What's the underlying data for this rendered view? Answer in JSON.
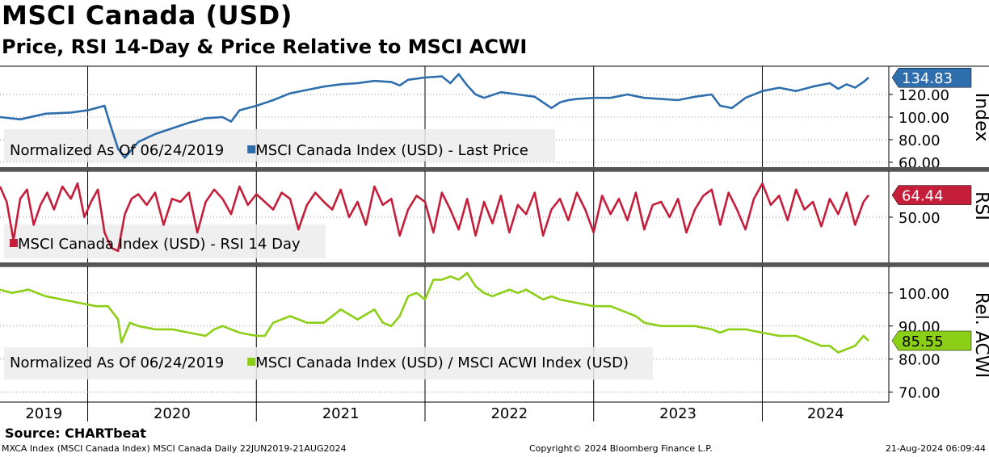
{
  "header": {
    "title": "MSCI Canada (USD)",
    "subtitle": "Price, RSI 14-Day & Price Relative to MSCI ACWI"
  },
  "footer": {
    "source": "Source: CHARTbeat",
    "ticker_info": "MXCA Index (MSCI Canada Index) MSCI Canada  Daily 22JUN2019-21AUG2024",
    "copyright": "Copyright© 2024 Bloomberg Finance L.P.",
    "timestamp": "21-Aug-2024 06:09:44"
  },
  "colors": {
    "price": "#2e6ead",
    "rsi": "#c41e3a",
    "relative": "#8ccf17",
    "covid_faded": "#9fb4c8"
  },
  "chart_data": [
    {
      "type": "line",
      "panel": "price",
      "axis_label": "Index",
      "legend": [
        "Normalized As Of 06/24/2019",
        "MSCI Canada Index (USD) - Last Price"
      ],
      "last_value": "134.83",
      "ylim": [
        55,
        145
      ],
      "y_ticks": [
        "60.00",
        "80.00",
        "100.00",
        "120.00"
      ],
      "series": [
        {
          "name": "MSCI Canada Index (USD) - Last Price",
          "x": [
            2019.48,
            2019.6,
            2019.75,
            2019.9,
            2020.0,
            2020.1,
            2020.13,
            2020.18,
            2020.22,
            2020.3,
            2020.4,
            2020.5,
            2020.6,
            2020.7,
            2020.8,
            2020.85,
            2020.9,
            2021.0,
            2021.1,
            2021.2,
            2021.3,
            2021.4,
            2021.5,
            2021.6,
            2021.7,
            2021.8,
            2021.85,
            2021.9,
            2022.0,
            2022.1,
            2022.15,
            2022.2,
            2022.25,
            2022.3,
            2022.35,
            2022.45,
            2022.55,
            2022.65,
            2022.75,
            2022.8,
            2022.85,
            2022.9,
            2023.0,
            2023.1,
            2023.2,
            2023.3,
            2023.4,
            2023.5,
            2023.6,
            2023.7,
            2023.75,
            2023.82,
            2023.9,
            2024.0,
            2024.1,
            2024.2,
            2024.3,
            2024.4,
            2024.45,
            2024.5,
            2024.55,
            2024.6,
            2024.63
          ],
          "values": [
            100,
            98,
            103,
            104,
            106,
            110,
            95,
            72,
            64,
            78,
            85,
            90,
            95,
            99,
            100,
            96,
            106,
            110,
            115,
            121,
            124,
            127,
            129,
            130,
            132,
            131,
            128,
            133,
            135,
            136,
            130,
            138,
            128,
            120,
            117,
            122,
            120,
            118,
            108,
            113,
            115,
            116,
            117,
            117,
            120,
            117,
            116,
            115,
            118,
            120,
            110,
            108,
            117,
            123,
            126,
            123,
            127,
            130,
            125,
            129,
            126,
            131,
            135
          ]
        }
      ]
    },
    {
      "type": "line",
      "panel": "rsi",
      "axis_label": "RSI",
      "legend": [
        "MSCI Canada Index (USD) - RSI 14 Day"
      ],
      "last_value": "64.44",
      "ylim": [
        20,
        80
      ],
      "y_ticks": [
        "50.00"
      ],
      "series": [
        {
          "name": "MSCI Canada Index (USD) - RSI 14 Day",
          "x": [
            2019.48,
            2019.52,
            2019.56,
            2019.6,
            2019.64,
            2019.68,
            2019.72,
            2019.76,
            2019.8,
            2019.85,
            2019.9,
            2019.94,
            2019.98,
            2020.02,
            2020.06,
            2020.1,
            2020.14,
            2020.18,
            2020.22,
            2020.26,
            2020.3,
            2020.35,
            2020.4,
            2020.45,
            2020.5,
            2020.55,
            2020.6,
            2020.65,
            2020.7,
            2020.75,
            2020.8,
            2020.85,
            2020.9,
            2020.95,
            2021.0,
            2021.05,
            2021.1,
            2021.15,
            2021.2,
            2021.25,
            2021.3,
            2021.35,
            2021.4,
            2021.45,
            2021.5,
            2021.55,
            2021.6,
            2021.65,
            2021.7,
            2021.75,
            2021.8,
            2021.85,
            2021.9,
            2021.95,
            2022.0,
            2022.05,
            2022.1,
            2022.15,
            2022.2,
            2022.25,
            2022.3,
            2022.35,
            2022.4,
            2022.45,
            2022.5,
            2022.55,
            2022.6,
            2022.65,
            2022.7,
            2022.75,
            2022.8,
            2022.85,
            2022.9,
            2022.95,
            2023.0,
            2023.05,
            2023.1,
            2023.15,
            2023.2,
            2023.25,
            2023.3,
            2023.35,
            2023.4,
            2023.45,
            2023.5,
            2023.55,
            2023.6,
            2023.65,
            2023.7,
            2023.75,
            2023.8,
            2023.85,
            2023.9,
            2023.95,
            2024.0,
            2024.05,
            2024.1,
            2024.15,
            2024.2,
            2024.25,
            2024.3,
            2024.35,
            2024.4,
            2024.45,
            2024.5,
            2024.55,
            2024.6,
            2024.63
          ],
          "values": [
            70,
            60,
            35,
            62,
            68,
            45,
            58,
            66,
            55,
            70,
            62,
            72,
            50,
            60,
            68,
            40,
            30,
            28,
            52,
            62,
            65,
            58,
            66,
            45,
            62,
            60,
            66,
            40,
            60,
            68,
            62,
            52,
            70,
            58,
            65,
            60,
            55,
            66,
            62,
            42,
            58,
            66,
            60,
            55,
            68,
            50,
            60,
            45,
            70,
            58,
            62,
            38,
            55,
            64,
            60,
            40,
            66,
            55,
            42,
            62,
            38,
            60,
            46,
            64,
            40,
            58,
            52,
            66,
            38,
            55,
            62,
            48,
            66,
            55,
            40,
            64,
            52,
            62,
            48,
            66,
            42,
            58,
            60,
            50,
            62,
            40,
            55,
            64,
            68,
            45,
            66,
            55,
            42,
            62,
            72,
            58,
            64,
            48,
            68,
            55,
            60,
            44,
            62,
            52,
            66,
            45,
            60,
            64.44
          ]
        }
      ]
    },
    {
      "type": "line",
      "panel": "relative",
      "axis_label": "Rel. ACWI",
      "legend": [
        "Normalized As Of 06/24/2019",
        "MSCI Canada Index (USD) / MSCI ACWI Index (USD)"
      ],
      "last_value": "85.55",
      "ylim": [
        67,
        108
      ],
      "y_ticks": [
        "70.00",
        "80.00",
        "90.00",
        "100.00"
      ],
      "series": [
        {
          "name": "MSCI Canada Index (USD) / MSCI ACWI Index (USD)",
          "x": [
            2019.48,
            2019.55,
            2019.65,
            2019.75,
            2019.85,
            2019.95,
            2020.05,
            2020.12,
            2020.18,
            2020.2,
            2020.25,
            2020.3,
            2020.4,
            2020.5,
            2020.6,
            2020.7,
            2020.75,
            2020.8,
            2020.9,
            2021.0,
            2021.05,
            2021.1,
            2021.2,
            2021.3,
            2021.4,
            2021.5,
            2021.6,
            2021.7,
            2021.75,
            2021.8,
            2021.85,
            2021.9,
            2021.95,
            2022.0,
            2022.05,
            2022.1,
            2022.15,
            2022.2,
            2022.25,
            2022.3,
            2022.35,
            2022.4,
            2022.45,
            2022.5,
            2022.55,
            2022.6,
            2022.7,
            2022.75,
            2022.8,
            2022.9,
            2023.0,
            2023.1,
            2023.2,
            2023.25,
            2023.3,
            2023.4,
            2023.5,
            2023.6,
            2023.7,
            2023.75,
            2023.8,
            2023.9,
            2024.0,
            2024.1,
            2024.2,
            2024.3,
            2024.35,
            2024.4,
            2024.45,
            2024.5,
            2024.55,
            2024.6,
            2024.63
          ],
          "values": [
            101,
            100,
            101,
            99,
            98,
            97,
            96,
            96,
            92,
            85,
            91,
            90,
            89,
            89,
            88,
            87,
            89,
            90,
            88,
            87,
            87,
            91,
            93,
            91,
            91,
            95,
            92,
            95,
            91,
            90,
            93,
            99,
            100,
            98,
            104,
            104,
            105,
            104,
            106,
            102,
            100,
            99,
            100,
            101,
            100,
            101,
            98,
            99,
            98,
            97,
            96,
            96,
            94,
            93,
            91,
            90,
            90,
            90,
            89,
            88,
            89,
            89,
            88,
            87,
            87,
            85,
            84,
            84,
            82,
            83,
            84,
            87,
            85.55
          ]
        }
      ]
    }
  ],
  "x_axis": {
    "years": [
      "2019",
      "2020",
      "2021",
      "2022",
      "2023",
      "2024"
    ]
  }
}
